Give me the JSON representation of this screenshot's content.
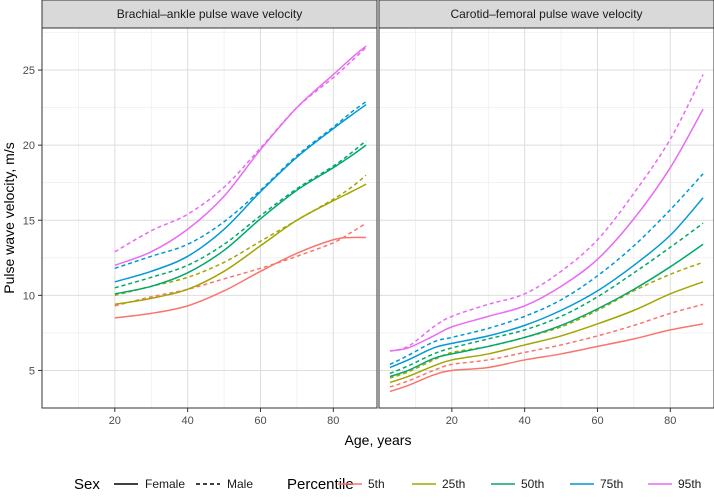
{
  "chart_data": {
    "type": "line",
    "xlabel": "Age, years",
    "ylabel": "Pulse wave velocity, m/s",
    "xlim": [
      0,
      92
    ],
    "ylim": [
      2.5,
      27.8
    ],
    "x_ticks": [
      20,
      40,
      60,
      80
    ],
    "x_tick_labels": [
      "20",
      "40",
      "60",
      "80"
    ],
    "y_ticks": [
      5,
      10,
      15,
      20,
      25
    ],
    "y_tick_labels": [
      "5",
      "10",
      "15",
      "20",
      "25"
    ],
    "grid": true,
    "legend_position": "bottom",
    "sex_legend": {
      "title": "Sex",
      "items": [
        {
          "label": "Female",
          "dash": "solid"
        },
        {
          "label": "Male",
          "dash": "dashed"
        }
      ]
    },
    "percentile_legend": {
      "title": "Percentile",
      "items": [
        {
          "label": "5th",
          "color": "#F8766D"
        },
        {
          "label": "25th",
          "color": "#A3A500"
        },
        {
          "label": "50th",
          "color": "#00A86B"
        },
        {
          "label": "75th",
          "color": "#0098D8"
        },
        {
          "label": "95th",
          "color": "#E76BF3"
        }
      ]
    },
    "panels": [
      {
        "title": "Brachial–ankle pulse wave velocity",
        "series": [
          {
            "percentile": "5th",
            "sex": "Female",
            "x": [
              20,
              30,
              40,
              50,
              60,
              70,
              80,
              85,
              89
            ],
            "values": [
              8.5,
              8.8,
              9.3,
              10.3,
              11.6,
              12.8,
              13.7,
              13.85,
              13.85
            ]
          },
          {
            "percentile": "5th",
            "sex": "Male",
            "x": [
              20,
              30,
              40,
              50,
              60,
              70,
              80,
              85,
              89
            ],
            "values": [
              9.3,
              9.9,
              10.4,
              11.1,
              11.8,
              12.6,
              13.5,
              14.2,
              14.8
            ]
          },
          {
            "percentile": "25th",
            "sex": "Female",
            "x": [
              20,
              30,
              40,
              50,
              60,
              70,
              80,
              85,
              89
            ],
            "values": [
              9.4,
              9.8,
              10.4,
              11.6,
              13.3,
              15.0,
              16.3,
              16.9,
              17.4
            ]
          },
          {
            "percentile": "25th",
            "sex": "Male",
            "x": [
              20,
              30,
              40,
              50,
              60,
              70,
              80,
              85,
              89
            ],
            "values": [
              10.0,
              10.6,
              11.2,
              12.2,
              13.6,
              15.0,
              16.4,
              17.2,
              18.0
            ]
          },
          {
            "percentile": "50th",
            "sex": "Female",
            "x": [
              20,
              30,
              40,
              50,
              60,
              70,
              80,
              85,
              89
            ],
            "values": [
              10.1,
              10.6,
              11.5,
              13.0,
              15.1,
              17.0,
              18.5,
              19.3,
              20.0
            ]
          },
          {
            "percentile": "50th",
            "sex": "Male",
            "x": [
              20,
              30,
              40,
              50,
              60,
              70,
              80,
              85,
              89
            ],
            "values": [
              10.5,
              11.2,
              12.0,
              13.4,
              15.3,
              17.1,
              18.6,
              19.5,
              20.3
            ]
          },
          {
            "percentile": "75th",
            "sex": "Female",
            "x": [
              20,
              30,
              40,
              50,
              60,
              70,
              80,
              85,
              89
            ],
            "values": [
              10.9,
              11.6,
              12.6,
              14.4,
              16.9,
              19.2,
              21.1,
              22.0,
              22.7
            ]
          },
          {
            "percentile": "75th",
            "sex": "Male",
            "x": [
              20,
              30,
              40,
              50,
              60,
              70,
              80,
              85,
              89
            ],
            "values": [
              11.8,
              12.6,
              13.4,
              14.9,
              17.0,
              19.3,
              21.2,
              22.2,
              22.9
            ]
          },
          {
            "percentile": "95th",
            "sex": "Female",
            "x": [
              20,
              30,
              40,
              50,
              60,
              70,
              80,
              85,
              89
            ],
            "values": [
              12.0,
              12.9,
              14.4,
              16.6,
              19.7,
              22.5,
              24.7,
              25.8,
              26.6
            ]
          },
          {
            "percentile": "95th",
            "sex": "Male",
            "x": [
              20,
              30,
              40,
              50,
              60,
              70,
              80,
              85,
              89
            ],
            "values": [
              12.9,
              14.3,
              15.4,
              17.2,
              19.8,
              22.5,
              24.5,
              25.6,
              26.5
            ]
          }
        ]
      },
      {
        "title": "Carotid–femoral pulse wave velocity",
        "series": [
          {
            "percentile": "5th",
            "sex": "Female",
            "x": [
              3,
              8,
              15,
              20,
              30,
              40,
              50,
              60,
              70,
              80,
              89
            ],
            "values": [
              3.6,
              4.0,
              4.7,
              5.0,
              5.2,
              5.7,
              6.1,
              6.6,
              7.1,
              7.7,
              8.1
            ]
          },
          {
            "percentile": "5th",
            "sex": "Male",
            "x": [
              3,
              8,
              15,
              20,
              30,
              40,
              50,
              60,
              70,
              80,
              89
            ],
            "values": [
              3.9,
              4.3,
              5.0,
              5.4,
              5.7,
              6.2,
              6.7,
              7.3,
              8.0,
              8.8,
              9.4
            ]
          },
          {
            "percentile": "25th",
            "sex": "Female",
            "x": [
              3,
              8,
              15,
              20,
              30,
              40,
              50,
              60,
              70,
              80,
              89
            ],
            "values": [
              4.2,
              4.6,
              5.3,
              5.7,
              6.1,
              6.7,
              7.3,
              8.1,
              9.0,
              10.1,
              10.9
            ]
          },
          {
            "percentile": "25th",
            "sex": "Male",
            "x": [
              3,
              8,
              15,
              20,
              30,
              40,
              50,
              60,
              70,
              80,
              89
            ],
            "values": [
              4.5,
              4.9,
              5.7,
              6.2,
              6.6,
              7.2,
              7.9,
              9.0,
              10.3,
              11.4,
              12.2
            ]
          },
          {
            "percentile": "50th",
            "sex": "Female",
            "x": [
              3,
              8,
              15,
              20,
              30,
              40,
              50,
              60,
              70,
              80,
              89
            ],
            "values": [
              4.6,
              5.0,
              5.8,
              6.1,
              6.6,
              7.2,
              8.0,
              9.1,
              10.4,
              11.9,
              13.4
            ]
          },
          {
            "percentile": "50th",
            "sex": "Male",
            "x": [
              3,
              8,
              15,
              20,
              30,
              40,
              50,
              60,
              70,
              80,
              89
            ],
            "values": [
              4.8,
              5.3,
              6.1,
              6.5,
              7.1,
              7.7,
              8.6,
              9.9,
              11.5,
              13.2,
              14.8
            ]
          },
          {
            "percentile": "75th",
            "sex": "Female",
            "x": [
              3,
              8,
              15,
              20,
              30,
              40,
              50,
              60,
              70,
              80,
              89
            ],
            "values": [
              5.2,
              5.7,
              6.5,
              6.8,
              7.3,
              8.0,
              9.0,
              10.3,
              12.0,
              14.0,
              16.5
            ]
          },
          {
            "percentile": "75th",
            "sex": "Male",
            "x": [
              3,
              8,
              15,
              20,
              30,
              40,
              50,
              60,
              70,
              80,
              89
            ],
            "values": [
              5.4,
              6.0,
              6.9,
              7.2,
              7.8,
              8.6,
              9.7,
              11.3,
              13.3,
              15.7,
              18.1
            ]
          },
          {
            "percentile": "95th",
            "sex": "Female",
            "x": [
              3,
              8,
              15,
              20,
              30,
              40,
              50,
              60,
              70,
              80,
              89
            ],
            "values": [
              6.3,
              6.5,
              7.3,
              7.9,
              8.6,
              9.3,
              10.6,
              12.4,
              15.1,
              18.5,
              22.4
            ]
          },
          {
            "percentile": "95th",
            "sex": "Male",
            "x": [
              3,
              8,
              15,
              20,
              30,
              40,
              50,
              60,
              70,
              80,
              89
            ],
            "values": [
              6.3,
              6.6,
              7.9,
              8.6,
              9.4,
              10.1,
              11.6,
              13.7,
              16.8,
              20.4,
              24.7
            ]
          }
        ]
      }
    ]
  }
}
